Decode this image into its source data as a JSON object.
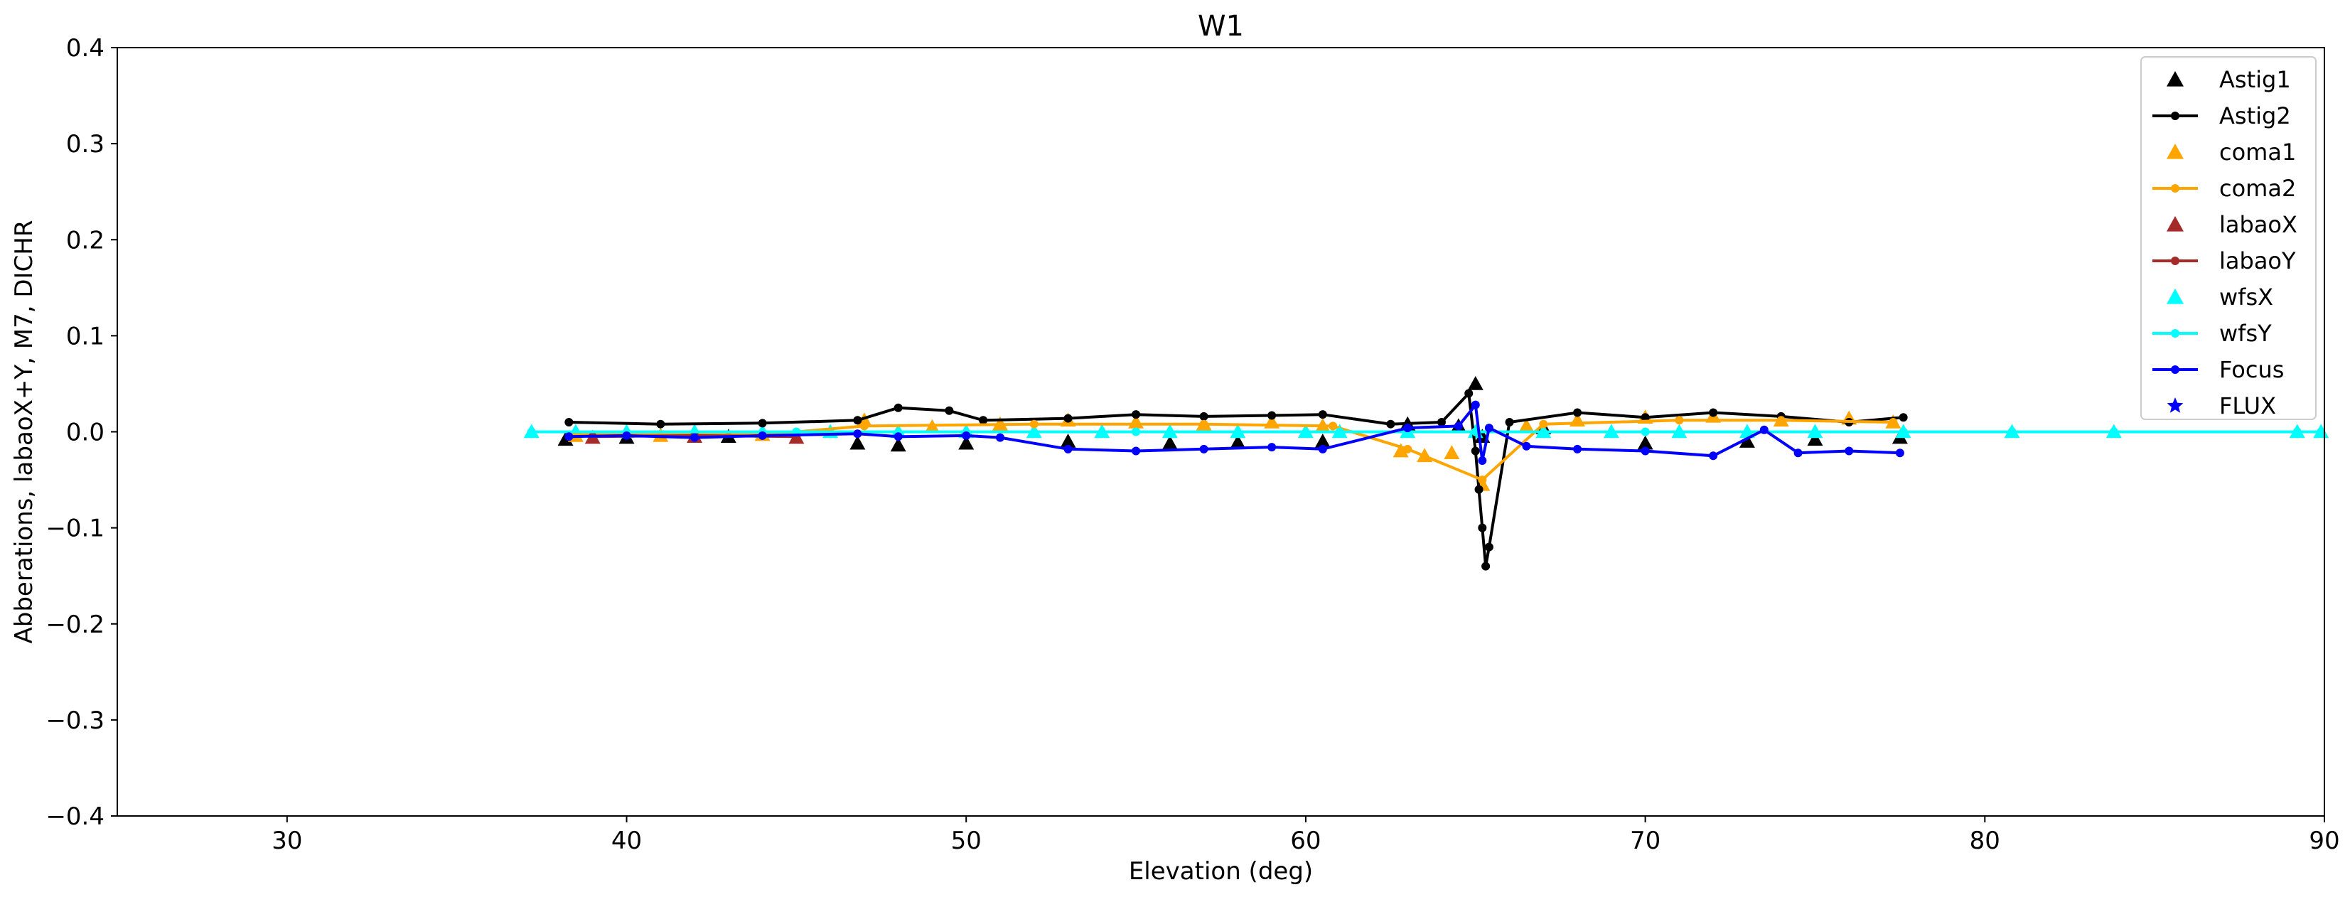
{
  "chart_data": {
    "type": "scatter",
    "title": "W1",
    "xlabel": "Elevation (deg)",
    "ylabel": "Abberations, labaoX+Y, M7, DICHR",
    "xlim": [
      25,
      90
    ],
    "ylim": [
      -0.4,
      0.4
    ],
    "xticks": [
      30,
      40,
      50,
      60,
      70,
      80,
      90
    ],
    "yticks": [
      -0.4,
      -0.3,
      -0.2,
      -0.1,
      0.0,
      0.1,
      0.2,
      0.3,
      0.4
    ],
    "xtick_labels": [
      "30",
      "40",
      "50",
      "60",
      "70",
      "80",
      "90"
    ],
    "ytick_labels": [
      "−0.4",
      "−0.3",
      "−0.2",
      "−0.1",
      "0.0",
      "0.1",
      "0.2",
      "0.3",
      "0.4"
    ],
    "grid": false,
    "legend_position": "top-right",
    "series": [
      {
        "name": "Astig1",
        "color": "#000000",
        "marker": "triangle",
        "line": false,
        "x": [
          38.2,
          40,
          43,
          46.8,
          48,
          50,
          53,
          56,
          58,
          60.5,
          63,
          64.5,
          65,
          65.2,
          67,
          70,
          73,
          75,
          77.5
        ],
        "y": [
          -0.008,
          -0.006,
          -0.005,
          -0.012,
          -0.014,
          -0.012,
          -0.01,
          -0.012,
          -0.011,
          -0.01,
          0.008,
          0.006,
          0.05,
          -0.005,
          0.004,
          -0.012,
          -0.01,
          -0.008,
          -0.006
        ]
      },
      {
        "name": "Astig2",
        "color": "#000000",
        "marker": "dot",
        "line": true,
        "x": [
          38.3,
          41,
          44,
          46.8,
          48,
          49.5,
          50.5,
          53,
          55,
          57,
          59,
          60.5,
          62.5,
          64,
          64.8,
          65,
          65.1,
          65.2,
          65.3,
          65.4,
          66,
          68,
          70,
          72,
          74,
          76,
          77.6
        ],
        "y": [
          0.01,
          0.008,
          0.009,
          0.012,
          0.025,
          0.022,
          0.012,
          0.014,
          0.018,
          0.016,
          0.017,
          0.018,
          0.008,
          0.01,
          0.04,
          -0.02,
          -0.06,
          -0.1,
          -0.14,
          -0.12,
          0.01,
          0.02,
          0.015,
          0.02,
          0.016,
          0.01,
          0.015
        ]
      },
      {
        "name": "coma1",
        "color": "#ffa500",
        "marker": "triangle",
        "line": false,
        "x": [
          38.5,
          41,
          44,
          47,
          49,
          51,
          53,
          55,
          57,
          59,
          60.5,
          62.8,
          63.5,
          64.3,
          65.2,
          66.5,
          68,
          70,
          72,
          74,
          76,
          77.3
        ],
        "y": [
          -0.004,
          -0.004,
          -0.003,
          0.012,
          0.005,
          0.008,
          0.012,
          0.01,
          0.008,
          0.01,
          0.006,
          -0.02,
          -0.025,
          -0.022,
          -0.055,
          0.006,
          0.012,
          0.015,
          0.016,
          0.012,
          0.014,
          0.01
        ]
      },
      {
        "name": "coma2",
        "color": "#ffa500",
        "marker": "dot",
        "line": true,
        "x": [
          38.5,
          44,
          47,
          52,
          57,
          60.8,
          63,
          65.2,
          67,
          71,
          74,
          77.3
        ],
        "y": [
          -0.003,
          -0.003,
          0.006,
          0.008,
          0.008,
          0.006,
          -0.018,
          -0.05,
          0.008,
          0.012,
          0.012,
          0.01
        ]
      },
      {
        "name": "labaoX",
        "color": "#a52a2a",
        "marker": "triangle",
        "line": false,
        "x": [
          39,
          42,
          45
        ],
        "y": [
          -0.006,
          -0.005,
          -0.006
        ]
      },
      {
        "name": "labaoY",
        "color": "#a52a2a",
        "marker": "dot",
        "line": true,
        "x": [
          39,
          42,
          45
        ],
        "y": [
          -0.005,
          -0.004,
          -0.005
        ]
      },
      {
        "name": "wfsX",
        "color": "#00ffff",
        "marker": "triangle",
        "line": false,
        "x": [
          37.2,
          38.5,
          40,
          42,
          44,
          46,
          48,
          50,
          52,
          54,
          56,
          58,
          60,
          61,
          63,
          65,
          67,
          69,
          71,
          73,
          75,
          77.6,
          80.8,
          83.8,
          89.2,
          89.9
        ],
        "y": [
          0.0,
          0.0,
          0.0,
          0.0,
          0.0,
          0.0,
          0.0,
          0.0,
          0.0,
          0.0,
          0.0,
          0.0,
          0.0,
          0.0,
          0.0,
          0.0,
          0.0,
          0.0,
          0.0,
          0.0,
          0.0,
          0.0,
          0.0,
          0.0,
          0.0,
          0.0
        ]
      },
      {
        "name": "wfsY",
        "color": "#00ffff",
        "marker": "dot",
        "line": true,
        "x": [
          37.2,
          45,
          55,
          61,
          65,
          70,
          77.6,
          80.8,
          83.8,
          89.2,
          89.9
        ],
        "y": [
          0.0,
          0.0,
          0.0,
          0.0,
          0.0,
          0.0,
          0.0,
          0.0,
          0.0,
          0.0,
          0.0
        ]
      },
      {
        "name": "Focus",
        "color": "#0000ff",
        "marker": "dot",
        "line": true,
        "x": [
          38.3,
          40,
          42,
          44,
          46.8,
          48,
          50,
          51,
          53,
          55,
          57,
          59,
          60.5,
          63,
          64.5,
          65,
          65.2,
          65.4,
          66.5,
          68,
          70,
          72,
          73.5,
          74.5,
          76,
          77.5
        ],
        "y": [
          -0.005,
          -0.004,
          -0.006,
          -0.004,
          -0.002,
          -0.005,
          -0.004,
          -0.006,
          -0.018,
          -0.02,
          -0.018,
          -0.016,
          -0.018,
          0.004,
          0.006,
          0.028,
          -0.03,
          0.004,
          -0.015,
          -0.018,
          -0.02,
          -0.025,
          0.002,
          -0.022,
          -0.02,
          -0.022
        ]
      },
      {
        "name": "FLUX",
        "color": "#0000ff",
        "marker": "star",
        "line": false,
        "x": [],
        "y": []
      }
    ]
  }
}
